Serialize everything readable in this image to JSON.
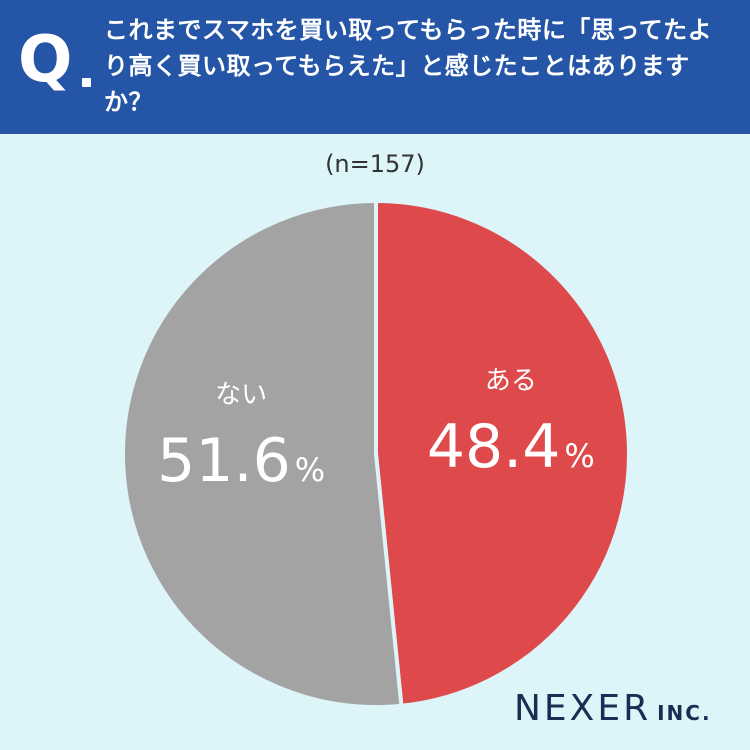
{
  "header": {
    "q_label": "Q",
    "question": "これまでスマホを買い取ってもらった時に「思ってたより高く買い取ってもらえた」と感じたことはありますか？"
  },
  "chart_data": {
    "type": "pie",
    "sample_label": "(n=157)",
    "series": [
      {
        "name": "ある",
        "value": 48.4,
        "label": "48.4",
        "color": "#de4a4c"
      },
      {
        "name": "ない",
        "value": 51.6,
        "label": "51.6",
        "color": "#a3a3a3"
      }
    ],
    "unit": "%",
    "start": "12 o'clock",
    "direction": "clockwise"
  },
  "logo": {
    "main": "NEXER",
    "suffix": "INC."
  }
}
